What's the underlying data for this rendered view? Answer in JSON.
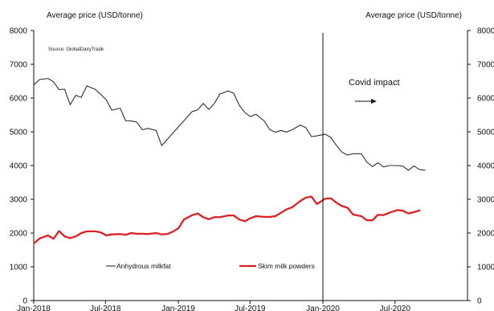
{
  "chart_data": {
    "type": "line",
    "source": "Source: GlobalDairyTrade",
    "y_left_label": "Average price (USD/tonne)",
    "y_right_label": "Average price (USD/tonne)",
    "ylim": [
      0,
      8000
    ],
    "yticks": [
      0,
      1000,
      2000,
      3000,
      4000,
      5000,
      6000,
      7000,
      8000
    ],
    "xlim": [
      "2018-01-01",
      "2020-12-31"
    ],
    "xticks": [
      {
        "date": "2018-01-01",
        "label": "Jan-2018"
      },
      {
        "date": "2018-07-01",
        "label": "Jul-2018"
      },
      {
        "date": "2019-01-01",
        "label": "Jan-2019"
      },
      {
        "date": "2019-07-01",
        "label": "Jul-2019"
      },
      {
        "date": "2020-01-01",
        "label": "Jan-2020"
      },
      {
        "date": "2020-07-01",
        "label": "Jul-2020"
      }
    ],
    "annotation": {
      "text": "Covid impact",
      "x": "2020-01-01"
    },
    "legend": {
      "placement": "bottom-left"
    },
    "series": [
      {
        "name": "Anhydrous milkfat",
        "color": "#3a2a3a",
        "points": [
          [
            "2018-01-02",
            6400
          ],
          [
            "2018-01-16",
            6550
          ],
          [
            "2018-02-06",
            6580
          ],
          [
            "2018-02-20",
            6480
          ],
          [
            "2018-03-06",
            6250
          ],
          [
            "2018-03-20",
            6260
          ],
          [
            "2018-04-03",
            5800
          ],
          [
            "2018-04-17",
            6080
          ],
          [
            "2018-05-01",
            6020
          ],
          [
            "2018-05-15",
            6360
          ],
          [
            "2018-06-05",
            6260
          ],
          [
            "2018-06-19",
            6110
          ],
          [
            "2018-07-03",
            5950
          ],
          [
            "2018-07-17",
            5640
          ],
          [
            "2018-08-07",
            5700
          ],
          [
            "2018-08-21",
            5330
          ],
          [
            "2018-09-04",
            5320
          ],
          [
            "2018-09-18",
            5290
          ],
          [
            "2018-10-02",
            5060
          ],
          [
            "2018-10-16",
            5100
          ],
          [
            "2018-11-06",
            5040
          ],
          [
            "2018-11-20",
            4590
          ],
          [
            "2019-02-05",
            5600
          ],
          [
            "2019-02-19",
            5650
          ],
          [
            "2019-03-05",
            5840
          ],
          [
            "2019-03-19",
            5660
          ],
          [
            "2019-04-02",
            5840
          ],
          [
            "2019-04-16",
            6120
          ],
          [
            "2019-05-07",
            6210
          ],
          [
            "2019-05-21",
            6140
          ],
          [
            "2019-06-04",
            5780
          ],
          [
            "2019-06-18",
            5570
          ],
          [
            "2019-07-02",
            5450
          ],
          [
            "2019-07-16",
            5520
          ],
          [
            "2019-08-06",
            5320
          ],
          [
            "2019-08-20",
            5060
          ],
          [
            "2019-09-03",
            4990
          ],
          [
            "2019-09-17",
            5040
          ],
          [
            "2019-10-01",
            4990
          ],
          [
            "2019-10-15",
            5060
          ],
          [
            "2019-11-05",
            5200
          ],
          [
            "2019-11-19",
            5120
          ],
          [
            "2019-12-03",
            4860
          ],
          [
            "2019-12-17",
            4880
          ],
          [
            "2020-01-07",
            4930
          ],
          [
            "2020-01-21",
            4830
          ],
          [
            "2020-02-04",
            4600
          ],
          [
            "2020-02-18",
            4400
          ],
          [
            "2020-03-03",
            4310
          ],
          [
            "2020-03-17",
            4350
          ],
          [
            "2020-04-07",
            4350
          ],
          [
            "2020-04-21",
            4100
          ],
          [
            "2020-05-05",
            3970
          ],
          [
            "2020-05-19",
            4080
          ],
          [
            "2020-06-02",
            3960
          ],
          [
            "2020-06-16",
            4000
          ],
          [
            "2020-07-07",
            4000
          ],
          [
            "2020-07-21",
            3980
          ],
          [
            "2020-08-04",
            3860
          ],
          [
            "2020-08-18",
            3990
          ],
          [
            "2020-09-01",
            3880
          ],
          [
            "2020-09-15",
            3860
          ]
        ]
      },
      {
        "name": "Skim milk powders",
        "color": "#dd1f26",
        "points": [
          [
            "2018-01-02",
            1700
          ],
          [
            "2018-01-16",
            1840
          ],
          [
            "2018-02-06",
            1930
          ],
          [
            "2018-02-20",
            1830
          ],
          [
            "2018-03-06",
            2060
          ],
          [
            "2018-03-20",
            1900
          ],
          [
            "2018-04-03",
            1850
          ],
          [
            "2018-04-17",
            1900
          ],
          [
            "2018-05-01",
            2000
          ],
          [
            "2018-05-15",
            2050
          ],
          [
            "2018-06-05",
            2050
          ],
          [
            "2018-06-19",
            2020
          ],
          [
            "2018-07-03",
            1930
          ],
          [
            "2018-07-17",
            1960
          ],
          [
            "2018-08-07",
            1970
          ],
          [
            "2018-08-21",
            1950
          ],
          [
            "2018-09-04",
            2000
          ],
          [
            "2018-09-18",
            1980
          ],
          [
            "2018-10-02",
            1980
          ],
          [
            "2018-10-16",
            1970
          ],
          [
            "2018-11-06",
            2000
          ],
          [
            "2018-11-20",
            1960
          ],
          [
            "2018-12-04",
            1970
          ],
          [
            "2018-12-18",
            2040
          ],
          [
            "2019-01-02",
            2150
          ],
          [
            "2019-01-15",
            2400
          ],
          [
            "2019-02-05",
            2530
          ],
          [
            "2019-02-19",
            2580
          ],
          [
            "2019-03-05",
            2470
          ],
          [
            "2019-03-19",
            2410
          ],
          [
            "2019-04-02",
            2470
          ],
          [
            "2019-04-16",
            2470
          ],
          [
            "2019-05-07",
            2520
          ],
          [
            "2019-05-21",
            2520
          ],
          [
            "2019-06-04",
            2400
          ],
          [
            "2019-06-18",
            2350
          ],
          [
            "2019-07-02",
            2440
          ],
          [
            "2019-07-16",
            2500
          ],
          [
            "2019-08-06",
            2480
          ],
          [
            "2019-08-20",
            2480
          ],
          [
            "2019-09-03",
            2500
          ],
          [
            "2019-09-17",
            2600
          ],
          [
            "2019-10-01",
            2700
          ],
          [
            "2019-10-15",
            2760
          ],
          [
            "2019-11-05",
            2950
          ],
          [
            "2019-11-19",
            3050
          ],
          [
            "2019-12-03",
            3080
          ],
          [
            "2019-12-17",
            2860
          ],
          [
            "2020-01-07",
            3020
          ],
          [
            "2020-01-21",
            3030
          ],
          [
            "2020-02-04",
            2900
          ],
          [
            "2020-02-18",
            2800
          ],
          [
            "2020-03-03",
            2750
          ],
          [
            "2020-03-17",
            2550
          ],
          [
            "2020-04-07",
            2500
          ],
          [
            "2020-04-21",
            2380
          ],
          [
            "2020-05-05",
            2380
          ],
          [
            "2020-05-19",
            2540
          ],
          [
            "2020-06-02",
            2530
          ],
          [
            "2020-06-16",
            2600
          ],
          [
            "2020-07-07",
            2680
          ],
          [
            "2020-07-21",
            2660
          ],
          [
            "2020-08-04",
            2580
          ],
          [
            "2020-08-18",
            2620
          ],
          [
            "2020-09-01",
            2670
          ]
        ]
      }
    ]
  }
}
